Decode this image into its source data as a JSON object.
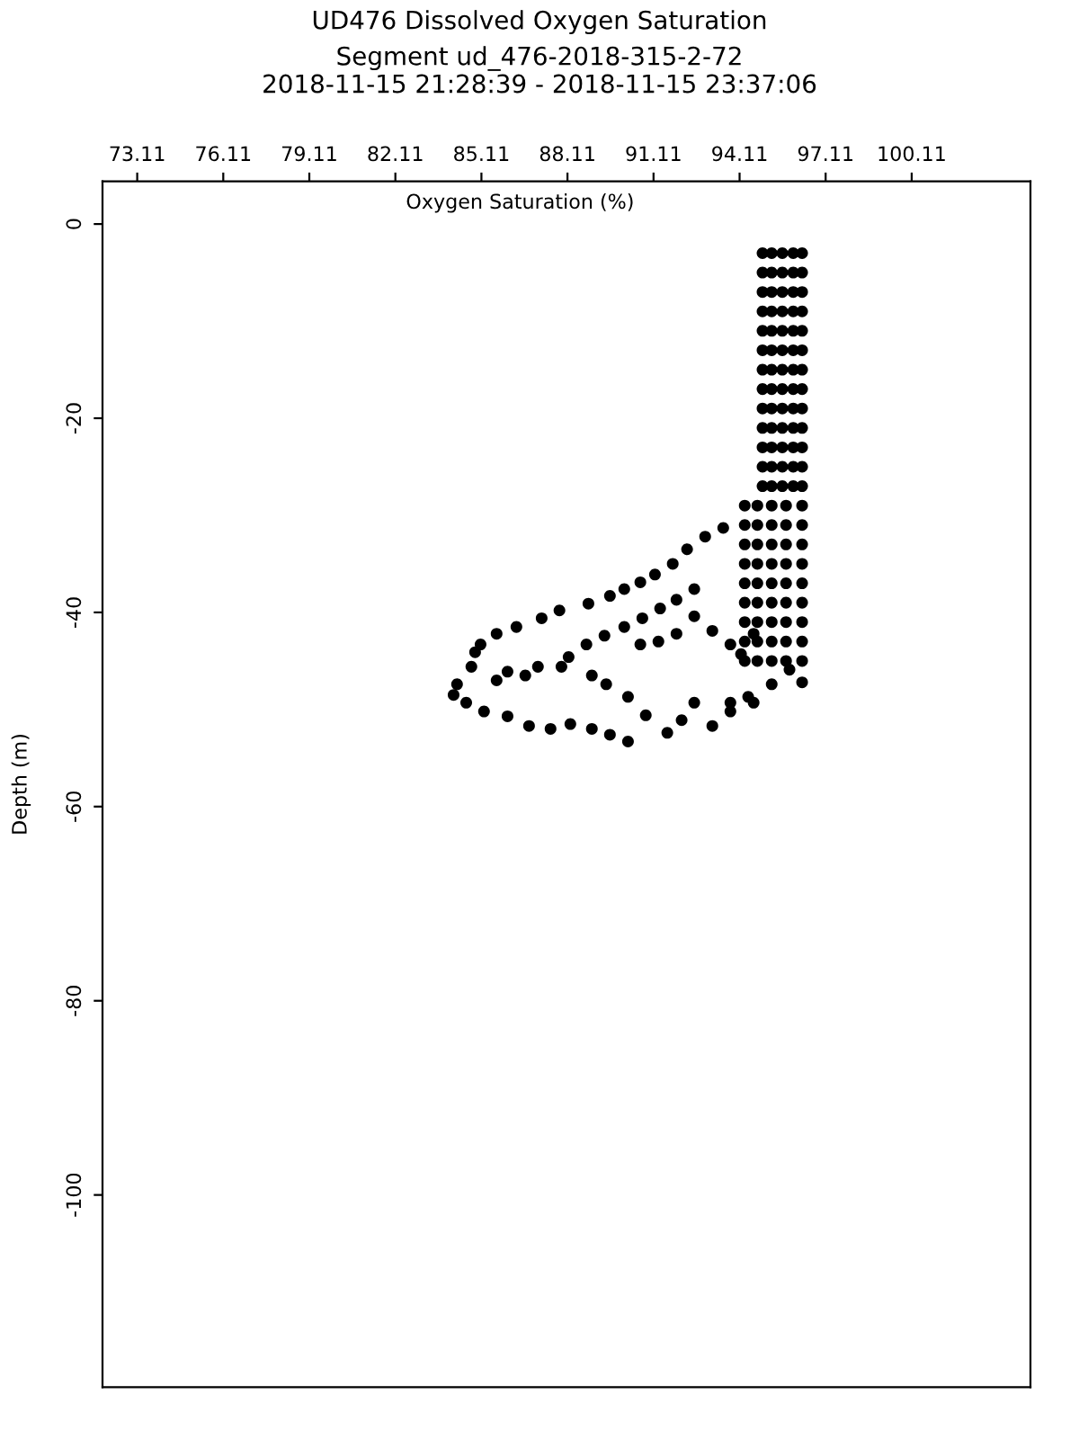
{
  "chart_data": {
    "type": "scatter",
    "title": "UD476 Dissolved Oxygen Saturation",
    "subtitle": "Segment ud_476-2018-315-2-72\n2018-11-15 21:28:39 - 2018-11-15 23:37:06",
    "xlabel": "Oxygen Saturation (%)",
    "ylabel": "Depth (m)",
    "xlim": [
      71.9,
      104.25
    ],
    "ylim": [
      -119.8,
      4.4
    ],
    "xticks": [
      {
        "value": 73.11,
        "label": "73.11"
      },
      {
        "value": 76.11,
        "label": "76.11"
      },
      {
        "value": 79.11,
        "label": "79.11"
      },
      {
        "value": 82.11,
        "label": "82.11"
      },
      {
        "value": 85.11,
        "label": "85.11"
      },
      {
        "value": 88.11,
        "label": "88.11"
      },
      {
        "value": 91.11,
        "label": "91.11"
      },
      {
        "value": 94.11,
        "label": "94.11"
      },
      {
        "value": 97.11,
        "label": "97.11"
      },
      {
        "value": 100.11,
        "label": "100.11"
      }
    ],
    "yticks": [
      0,
      -20,
      -40,
      -60,
      -80,
      -100
    ],
    "marker": "circle",
    "grid": false,
    "legend": false,
    "series": [
      {
        "color": "#000000",
        "x": [
          94.91,
          95.23,
          95.6,
          95.98,
          96.29,
          94.91,
          95.23,
          95.6,
          95.98,
          96.29,
          94.91,
          95.23,
          95.6,
          95.98,
          96.29,
          94.91,
          95.23,
          95.6,
          95.98,
          96.29,
          94.91,
          95.23,
          95.6,
          95.98,
          96.29,
          94.91,
          95.23,
          95.6,
          95.98,
          96.29,
          94.91,
          95.23,
          95.6,
          95.98,
          96.29,
          94.91,
          95.23,
          95.6,
          95.98,
          96.29,
          94.91,
          95.23,
          95.6,
          95.98,
          96.29,
          94.91,
          95.23,
          95.6,
          95.98,
          96.29,
          94.91,
          95.23,
          95.6,
          95.98,
          96.29,
          94.91,
          95.23,
          95.6,
          95.98,
          96.29,
          94.91,
          95.23,
          95.6,
          95.98,
          96.29
        ],
        "values": [
          -3,
          -3,
          -3,
          -3,
          -3,
          -5,
          -5,
          -5,
          -5,
          -5,
          -7,
          -7,
          -7,
          -7,
          -7,
          -9,
          -9,
          -9,
          -9,
          -9,
          -11,
          -11,
          -11,
          -11,
          -11,
          -13,
          -13,
          -13,
          -13,
          -13,
          -15,
          -15,
          -15,
          -15,
          -15,
          -17,
          -17,
          -17,
          -17,
          -17,
          -19,
          -19,
          -19,
          -19,
          -19,
          -21,
          -21,
          -21,
          -21,
          -21,
          -23,
          -23,
          -23,
          -23,
          -23,
          -25,
          -25,
          -25,
          -25,
          -25,
          -27,
          -27,
          -27,
          -27,
          -27
        ]
      },
      {
        "color": "#000000",
        "x": [
          94.29,
          94.73,
          95.23,
          95.73,
          96.29,
          94.29,
          94.73,
          95.23,
          95.73,
          96.29,
          94.29,
          94.73,
          95.23,
          95.73,
          96.29,
          94.29,
          94.73,
          95.23,
          95.73,
          96.29,
          94.29,
          94.73,
          95.23,
          95.73,
          96.29,
          94.29,
          94.73,
          95.23,
          95.73,
          96.29,
          94.29,
          94.73,
          95.23,
          95.73,
          96.29,
          94.29,
          94.73,
          95.23,
          95.73,
          96.29,
          94.29,
          94.73,
          95.23,
          95.73,
          96.29,
          93.79,
          94.6,
          95.23,
          95.85,
          96.29
        ],
        "values": [
          -29,
          -29,
          -29,
          -29,
          -29,
          -31,
          -31,
          -31,
          -31,
          -31,
          -33,
          -33,
          -33,
          -33,
          -33,
          -35,
          -35,
          -35,
          -35,
          -35,
          -37,
          -37,
          -37,
          -37,
          -37,
          -39,
          -39,
          -39,
          -39,
          -39,
          -41,
          -41,
          -41,
          -41,
          -41,
          -43,
          -43,
          -43,
          -43,
          -43,
          -45,
          -45,
          -45,
          -45,
          -45,
          -50.2,
          -49.3,
          -47.4,
          -45.9,
          -47.2
        ]
      },
      {
        "color": "#000000",
        "x": [
          93.54,
          92.91,
          92.28,
          91.78,
          91.16,
          90.65,
          90.09,
          89.59,
          88.84,
          87.83,
          87.21,
          86.33,
          85.64,
          85.08,
          84.89,
          84.76,
          84.26,
          84.14,
          84.58,
          85.2,
          86.02,
          86.77,
          87.52,
          88.21,
          88.96,
          89.59,
          90.22,
          90.84,
          91.59,
          92.09,
          92.53,
          93.16,
          93.79,
          94.41
        ],
        "values": [
          -31.3,
          -32.2,
          -33.5,
          -35.0,
          -36.1,
          -36.9,
          -37.6,
          -38.3,
          -39.1,
          -39.8,
          -40.6,
          -41.5,
          -42.2,
          -43.3,
          -44.1,
          -45.6,
          -47.4,
          -48.5,
          -49.3,
          -50.2,
          -50.7,
          -51.7,
          -52.0,
          -51.5,
          -52.0,
          -52.6,
          -53.3,
          -50.6,
          -52.4,
          -51.1,
          -49.3,
          -51.7,
          -49.3,
          -48.7
        ]
      },
      {
        "color": "#000000",
        "x": [
          92.53,
          91.91,
          91.34,
          90.72,
          90.09,
          89.4,
          88.77,
          88.15,
          87.9,
          88.96,
          89.46,
          90.22,
          87.08,
          86.64,
          86.02,
          85.64,
          92.53,
          93.16,
          93.79,
          94.16,
          94.6,
          90.65,
          91.28,
          91.91
        ],
        "values": [
          -37.6,
          -38.7,
          -39.6,
          -40.6,
          -41.5,
          -42.4,
          -43.3,
          -44.6,
          -45.6,
          -46.5,
          -47.4,
          -48.7,
          -45.6,
          -46.5,
          -46.1,
          -47.0,
          -40.4,
          -41.9,
          -43.3,
          -44.3,
          -42.2,
          -43.3,
          -43.0,
          -42.2
        ]
      }
    ]
  }
}
